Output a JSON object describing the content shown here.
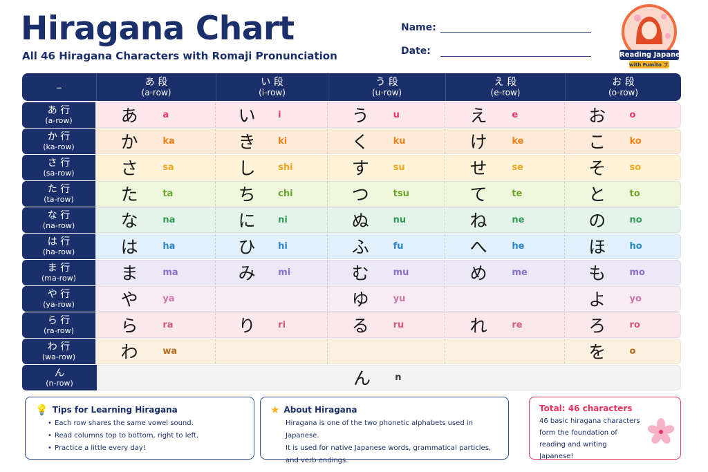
{
  "header": {
    "title": "Hiragana Chart",
    "subtitle": "All 46 Hiragana Characters with Romaji Pronunciation",
    "name_label": "Name:",
    "date_label": "Date:"
  },
  "badge": {
    "line1": "Reading Japanese",
    "line2": "with Fumito フミト"
  },
  "table": {
    "corner": "–",
    "columns": [
      {
        "main": "あ 段",
        "sub": "(a-row)"
      },
      {
        "main": "い 段",
        "sub": "(i-row)"
      },
      {
        "main": "う 段",
        "sub": "(u-row)"
      },
      {
        "main": "え 段",
        "sub": "(e-row)"
      },
      {
        "main": "お 段",
        "sub": "(o-row)"
      }
    ],
    "rows": [
      {
        "main": "あ 行",
        "sub": "(a-row)",
        "bg": "#fde8ee",
        "color": "#e6336b",
        "cells": [
          {
            "k": "あ",
            "r": "a"
          },
          {
            "k": "い",
            "r": "i"
          },
          {
            "k": "う",
            "r": "u"
          },
          {
            "k": "え",
            "r": "e"
          },
          {
            "k": "お",
            "r": "o"
          }
        ]
      },
      {
        "main": "か 行",
        "sub": "(ka-row)",
        "bg": "#fdebd9",
        "color": "#f0821c",
        "cells": [
          {
            "k": "か",
            "r": "ka"
          },
          {
            "k": "き",
            "r": "ki"
          },
          {
            "k": "く",
            "r": "ku"
          },
          {
            "k": "け",
            "r": "ke"
          },
          {
            "k": "こ",
            "r": "ko"
          }
        ]
      },
      {
        "main": "さ 行",
        "sub": "(sa-row)",
        "bg": "#fef2d8",
        "color": "#f0a81c",
        "cells": [
          {
            "k": "さ",
            "r": "sa"
          },
          {
            "k": "し",
            "r": "shi"
          },
          {
            "k": "す",
            "r": "su"
          },
          {
            "k": "せ",
            "r": "se"
          },
          {
            "k": "そ",
            "r": "so"
          }
        ]
      },
      {
        "main": "た 行",
        "sub": "(ta-row)",
        "bg": "#eef6dc",
        "color": "#6aa52a",
        "cells": [
          {
            "k": "た",
            "r": "ta"
          },
          {
            "k": "ち",
            "r": "chi"
          },
          {
            "k": "つ",
            "r": "tsu"
          },
          {
            "k": "て",
            "r": "te"
          },
          {
            "k": "と",
            "r": "to"
          }
        ]
      },
      {
        "main": "な 行",
        "sub": "(na-row)",
        "bg": "#e4f4ea",
        "color": "#2f9a55",
        "cells": [
          {
            "k": "な",
            "r": "na"
          },
          {
            "k": "に",
            "r": "ni"
          },
          {
            "k": "ぬ",
            "r": "nu"
          },
          {
            "k": "ね",
            "r": "ne"
          },
          {
            "k": "の",
            "r": "no"
          }
        ]
      },
      {
        "main": "は 行",
        "sub": "(ha-row)",
        "bg": "#e1f0fa",
        "color": "#2a86c8",
        "cells": [
          {
            "k": "は",
            "r": "ha"
          },
          {
            "k": "ひ",
            "r": "hi"
          },
          {
            "k": "ふ",
            "r": "fu"
          },
          {
            "k": "へ",
            "r": "he"
          },
          {
            "k": "ほ",
            "r": "ho"
          }
        ]
      },
      {
        "main": "ま 行",
        "sub": "(ma-row)",
        "bg": "#ece8f8",
        "color": "#8b6fc8",
        "cells": [
          {
            "k": "ま",
            "r": "ma"
          },
          {
            "k": "み",
            "r": "mi"
          },
          {
            "k": "む",
            "r": "mu"
          },
          {
            "k": "め",
            "r": "me"
          },
          {
            "k": "も",
            "r": "mo"
          }
        ]
      },
      {
        "main": "や 行",
        "sub": "(ya-row)",
        "bg": "#f8ebf3",
        "color": "#c877a8",
        "cells": [
          {
            "k": "や",
            "r": "ya"
          },
          {
            "k": "",
            "r": ""
          },
          {
            "k": "ゆ",
            "r": "yu"
          },
          {
            "k": "",
            "r": ""
          },
          {
            "k": "よ",
            "r": "yo"
          }
        ]
      },
      {
        "main": "ら 行",
        "sub": "(ra-row)",
        "bg": "#fbe8ec",
        "color": "#d4587a",
        "cells": [
          {
            "k": "ら",
            "r": "ra"
          },
          {
            "k": "り",
            "r": "ri"
          },
          {
            "k": "る",
            "r": "ru"
          },
          {
            "k": "れ",
            "r": "re"
          },
          {
            "k": "ろ",
            "r": "ro"
          }
        ]
      },
      {
        "main": "わ 行",
        "sub": "(wa-row)",
        "bg": "#fcf0e0",
        "color": "#b86a1e",
        "cells": [
          {
            "k": "わ",
            "r": "wa"
          },
          {
            "k": "",
            "r": ""
          },
          {
            "k": "",
            "r": ""
          },
          {
            "k": "",
            "r": ""
          },
          {
            "k": "を",
            "r": "o"
          }
        ]
      }
    ],
    "n_row": {
      "main": "ん",
      "sub": "(n-row)",
      "bg": "#f3f3f3",
      "color": "#333333",
      "k": "ん",
      "r": "n"
    }
  },
  "tips": {
    "title": "Tips for Learning Hiragana",
    "items": [
      "Each row shares the same vowel sound.",
      "Read columns top to bottom, right to left.",
      "Practice a little every day!"
    ]
  },
  "about": {
    "title": "About Hiragana",
    "lines": [
      "Hiragana is one of the two phonetic alphabets used in Japanese.",
      "It is used for native Japanese words, grammatical particles,",
      "and verb endings."
    ]
  },
  "total": {
    "title": "Total: 46 characters",
    "lines": [
      "46 basic hiragana characters",
      "form the foundation of",
      "reading and writing Japanese!"
    ]
  }
}
